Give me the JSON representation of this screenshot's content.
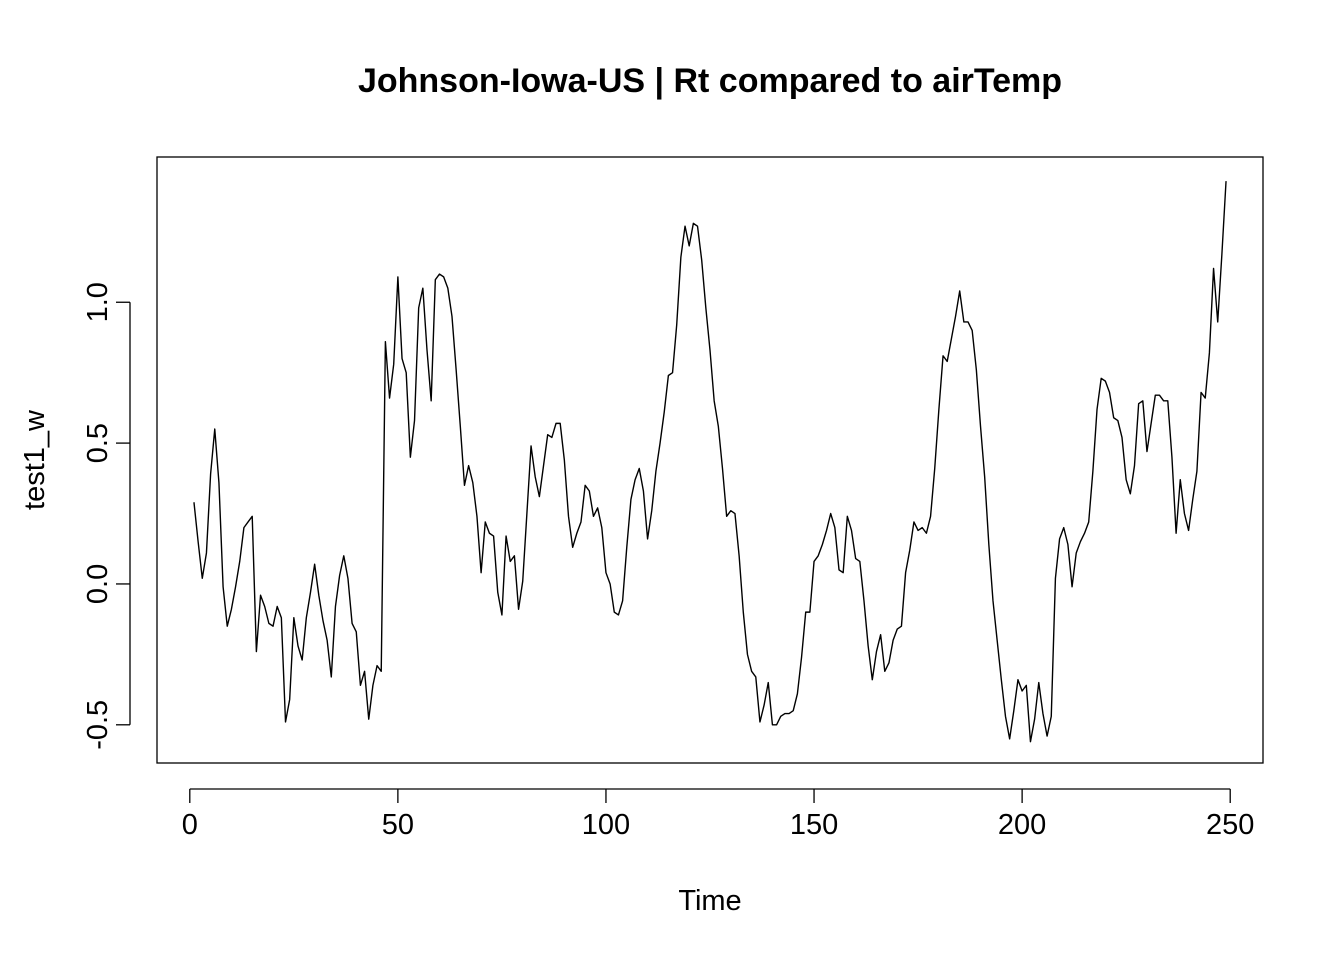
{
  "chart_data": {
    "type": "line",
    "title": "Johnson-Iowa-US | Rt compared to airTemp",
    "xlabel": "Time",
    "ylabel": "test1_w",
    "xlim": [
      -7.88,
      257.88
    ],
    "ylim": [
      -0.6356,
      1.5156
    ],
    "xticks": [
      0,
      50,
      100,
      150,
      200,
      250
    ],
    "xtick_labels": [
      "0",
      "50",
      "100",
      "150",
      "200",
      "250"
    ],
    "yticks": [
      -0.5,
      0.0,
      0.5,
      1.0
    ],
    "ytick_labels": [
      "-0.5",
      "0.0",
      "0.5",
      "1.0"
    ],
    "grid": false,
    "line_color": "#000000",
    "series": [
      {
        "values": [
          0.29,
          0.15,
          0.02,
          0.11,
          0.39,
          0.55,
          0.36,
          -0.01,
          -0.15,
          -0.09,
          -0.01,
          0.08,
          0.2,
          0.22,
          0.24,
          -0.24,
          -0.04,
          -0.08,
          -0.14,
          -0.15,
          -0.08,
          -0.12,
          -0.49,
          -0.41,
          -0.12,
          -0.22,
          -0.27,
          -0.12,
          -0.03,
          0.07,
          -0.04,
          -0.13,
          -0.2,
          -0.33,
          -0.08,
          0.03,
          0.1,
          0.02,
          -0.14,
          -0.17,
          -0.36,
          -0.31,
          -0.48,
          -0.36,
          -0.29,
          -0.31,
          0.86,
          0.66,
          0.78,
          1.09,
          0.8,
          0.75,
          0.45,
          0.58,
          0.98,
          1.05,
          0.83,
          0.65,
          1.08,
          1.1,
          1.09,
          1.05,
          0.95,
          0.76,
          0.56,
          0.35,
          0.42,
          0.36,
          0.24,
          0.04,
          0.22,
          0.18,
          0.17,
          -0.03,
          -0.11,
          0.17,
          0.08,
          0.1,
          -0.09,
          0.01,
          0.25,
          0.49,
          0.38,
          0.31,
          0.42,
          0.53,
          0.52,
          0.57,
          0.57,
          0.44,
          0.24,
          0.13,
          0.18,
          0.22,
          0.35,
          0.33,
          0.24,
          0.27,
          0.2,
          0.04,
          0.0,
          -0.1,
          -0.11,
          -0.06,
          0.13,
          0.3,
          0.37,
          0.41,
          0.33,
          0.16,
          0.26,
          0.4,
          0.5,
          0.61,
          0.74,
          0.75,
          0.92,
          1.16,
          1.27,
          1.2,
          1.28,
          1.27,
          1.15,
          0.98,
          0.83,
          0.65,
          0.56,
          0.41,
          0.24,
          0.26,
          0.25,
          0.1,
          -0.1,
          -0.25,
          -0.31,
          -0.33,
          -0.49,
          -0.43,
          -0.35,
          -0.5,
          -0.5,
          -0.47,
          -0.46,
          -0.46,
          -0.45,
          -0.39,
          -0.26,
          -0.1,
          -0.1,
          0.08,
          0.1,
          0.14,
          0.19,
          0.25,
          0.2,
          0.05,
          0.04,
          0.24,
          0.19,
          0.09,
          0.08,
          -0.06,
          -0.22,
          -0.34,
          -0.24,
          -0.18,
          -0.31,
          -0.28,
          -0.2,
          -0.16,
          -0.15,
          0.04,
          0.12,
          0.22,
          0.19,
          0.2,
          0.18,
          0.24,
          0.41,
          0.62,
          0.81,
          0.79,
          0.87,
          0.95,
          1.04,
          0.93,
          0.93,
          0.9,
          0.76,
          0.56,
          0.38,
          0.14,
          -0.06,
          -0.2,
          -0.34,
          -0.47,
          -0.55,
          -0.45,
          -0.34,
          -0.38,
          -0.36,
          -0.56,
          -0.48,
          -0.35,
          -0.46,
          -0.54,
          -0.47,
          0.02,
          0.16,
          0.2,
          0.14,
          -0.01,
          0.11,
          0.15,
          0.18,
          0.22,
          0.4,
          0.62,
          0.73,
          0.72,
          0.68,
          0.59,
          0.58,
          0.52,
          0.37,
          0.32,
          0.42,
          0.64,
          0.65,
          0.47,
          0.57,
          0.67,
          0.67,
          0.65,
          0.65,
          0.45,
          0.18,
          0.37,
          0.25,
          0.19,
          0.3,
          0.4,
          0.68,
          0.66,
          0.82,
          1.12,
          0.93,
          1.17,
          1.43
        ]
      }
    ]
  }
}
